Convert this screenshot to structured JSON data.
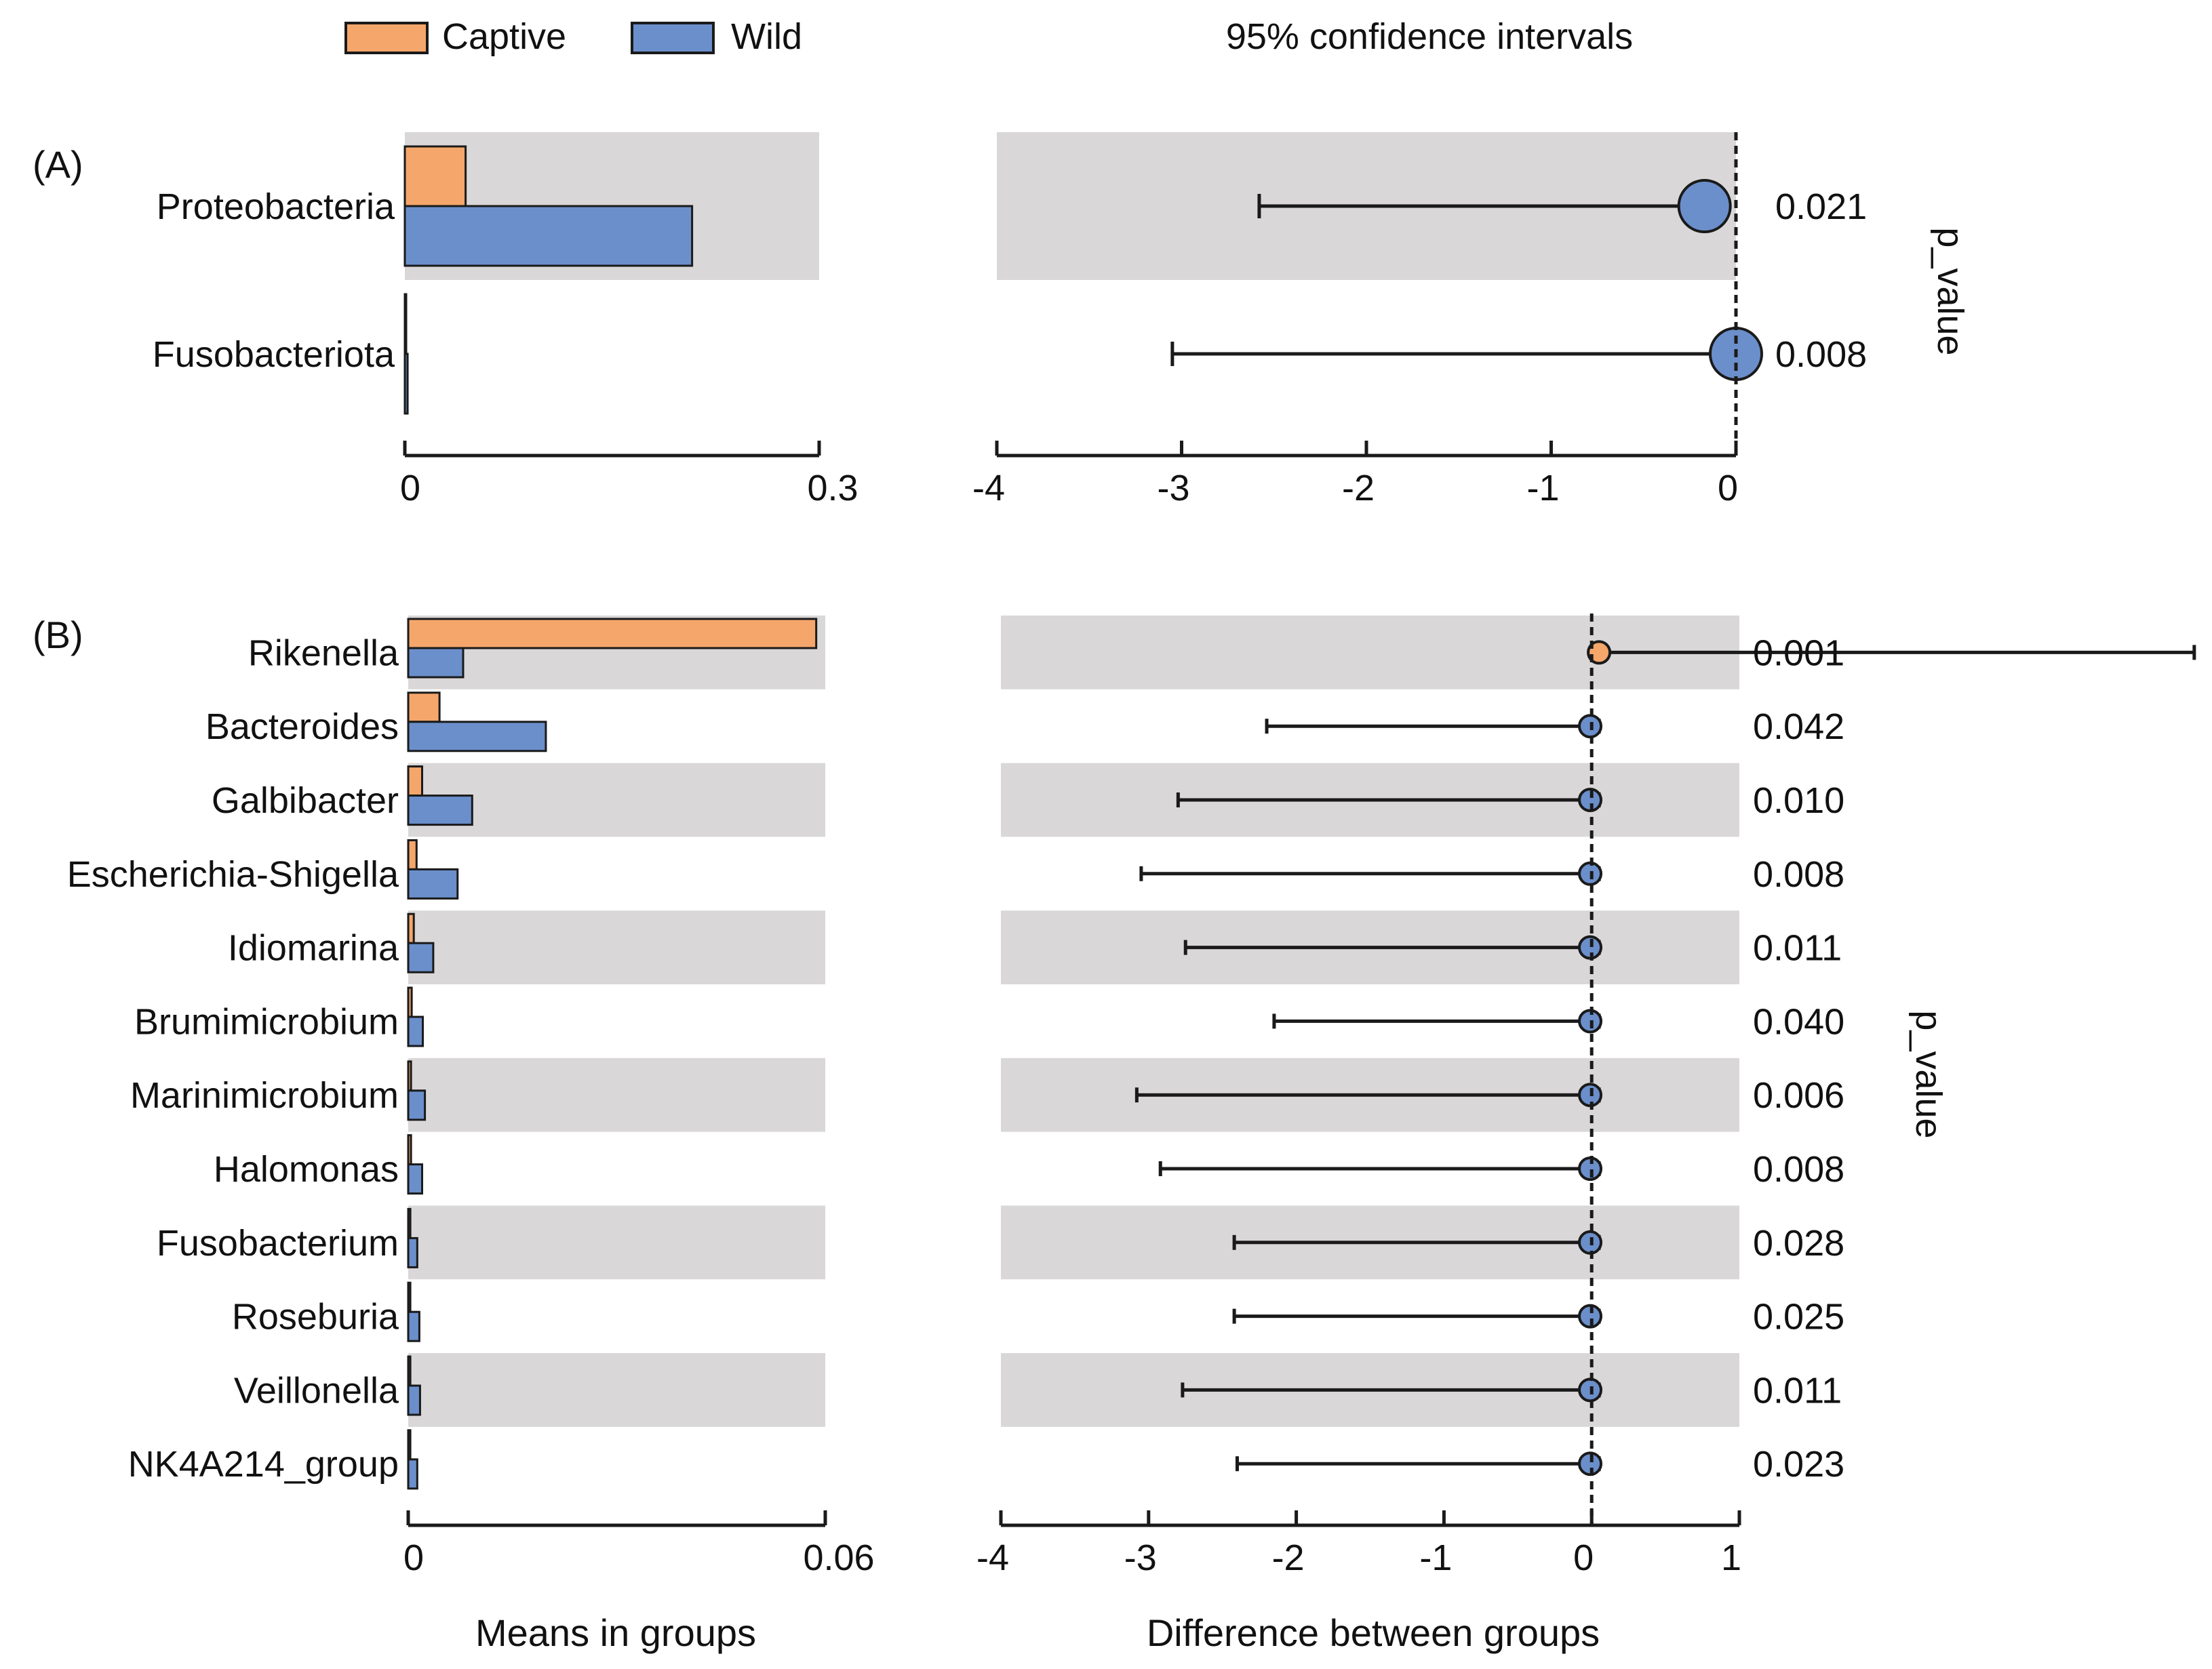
{
  "legend": {
    "items": [
      {
        "label": "Captive",
        "color": "#f5a66b"
      },
      {
        "label": "Wild",
        "color": "#6b8fcb"
      }
    ]
  },
  "colors": {
    "band": "#d9d7d8",
    "captive": "#f5a66b",
    "wild": "#6b8fcb",
    "stroke": "#1a1a1a"
  },
  "header": {
    "ci_title": "95% confidence intervals"
  },
  "footer": {
    "means_label": "Means in groups",
    "diff_label": "Difference between groups"
  },
  "pvalue_axis_label": "p_value",
  "chart_data": [
    {
      "panel": "(A)",
      "type": "bar",
      "title": "",
      "xlabel": "Means in groups",
      "xlim": [
        0,
        0.3
      ],
      "xticks": [
        "0",
        "0.3"
      ],
      "categories": [
        "Proteobacteria",
        "Fusobacteriota"
      ],
      "series": [
        {
          "name": "Captive",
          "values": [
            0.044,
            0.0005
          ]
        },
        {
          "name": "Wild",
          "values": [
            0.208,
            0.002
          ]
        }
      ],
      "ci": {
        "title": "95% confidence intervals",
        "xlim": [
          -4,
          0
        ],
        "xticks": [
          "-4",
          "-3",
          "-2",
          "-1",
          "0"
        ],
        "estimates": [
          -0.17,
          0.0
        ],
        "lower": [
          -2.58,
          -3.05
        ],
        "upper": [
          -0.08,
          0.1
        ],
        "favored": [
          "Wild",
          "Wild"
        ],
        "p_values": [
          "0.021",
          "0.008"
        ]
      }
    },
    {
      "panel": "(B)",
      "type": "bar",
      "title": "",
      "xlabel": "Means in groups",
      "xlim": [
        0,
        0.06
      ],
      "xticks": [
        "0",
        "0.06"
      ],
      "categories": [
        "Rikenella",
        "Bacteroides",
        "Galbibacter",
        "Escherichia-Shigella",
        "Idiomarina",
        "Brumimicrobium",
        "Marinimicrobium",
        "Halomonas",
        "Fusobacterium",
        "Roseburia",
        "Veillonella",
        "NK4A214_group"
      ],
      "series": [
        {
          "name": "Captive",
          "values": [
            0.0587,
            0.0045,
            0.002,
            0.0012,
            0.0008,
            0.0005,
            0.0004,
            0.0004,
            0.0003,
            0.0003,
            0.0003,
            0.0003
          ]
        },
        {
          "name": "Wild",
          "values": [
            0.0079,
            0.0198,
            0.0092,
            0.0071,
            0.0036,
            0.0021,
            0.0024,
            0.002,
            0.0013,
            0.0016,
            0.0017,
            0.0013
          ]
        }
      ],
      "ci": {
        "title": "Difference between groups",
        "xlim": [
          -4,
          1
        ],
        "xticks": [
          "-4",
          "-3",
          "-2",
          "-1",
          "0",
          "1"
        ],
        "estimates": [
          0.05,
          -0.01,
          -0.01,
          -0.01,
          -0.01,
          -0.01,
          -0.01,
          -0.01,
          -0.01,
          -0.01,
          -0.01,
          -0.01
        ],
        "lower": [
          0.05,
          -2.2,
          -2.8,
          -3.05,
          -2.75,
          -2.15,
          -3.08,
          -2.92,
          -2.42,
          -2.42,
          -2.77,
          -2.4
        ],
        "upper": [
          4.08,
          0.05,
          0.05,
          0.05,
          0.05,
          0.05,
          0.05,
          0.05,
          0.05,
          0.05,
          0.05,
          0.05
        ],
        "favored": [
          "Captive",
          "Wild",
          "Wild",
          "Wild",
          "Wild",
          "Wild",
          "Wild",
          "Wild",
          "Wild",
          "Wild",
          "Wild",
          "Wild"
        ],
        "p_values": [
          "0.001",
          "0.042",
          "0.010",
          "0.008",
          "0.011",
          "0.040",
          "0.006",
          "0.008",
          "0.028",
          "0.025",
          "0.011",
          "0.023"
        ]
      }
    }
  ]
}
